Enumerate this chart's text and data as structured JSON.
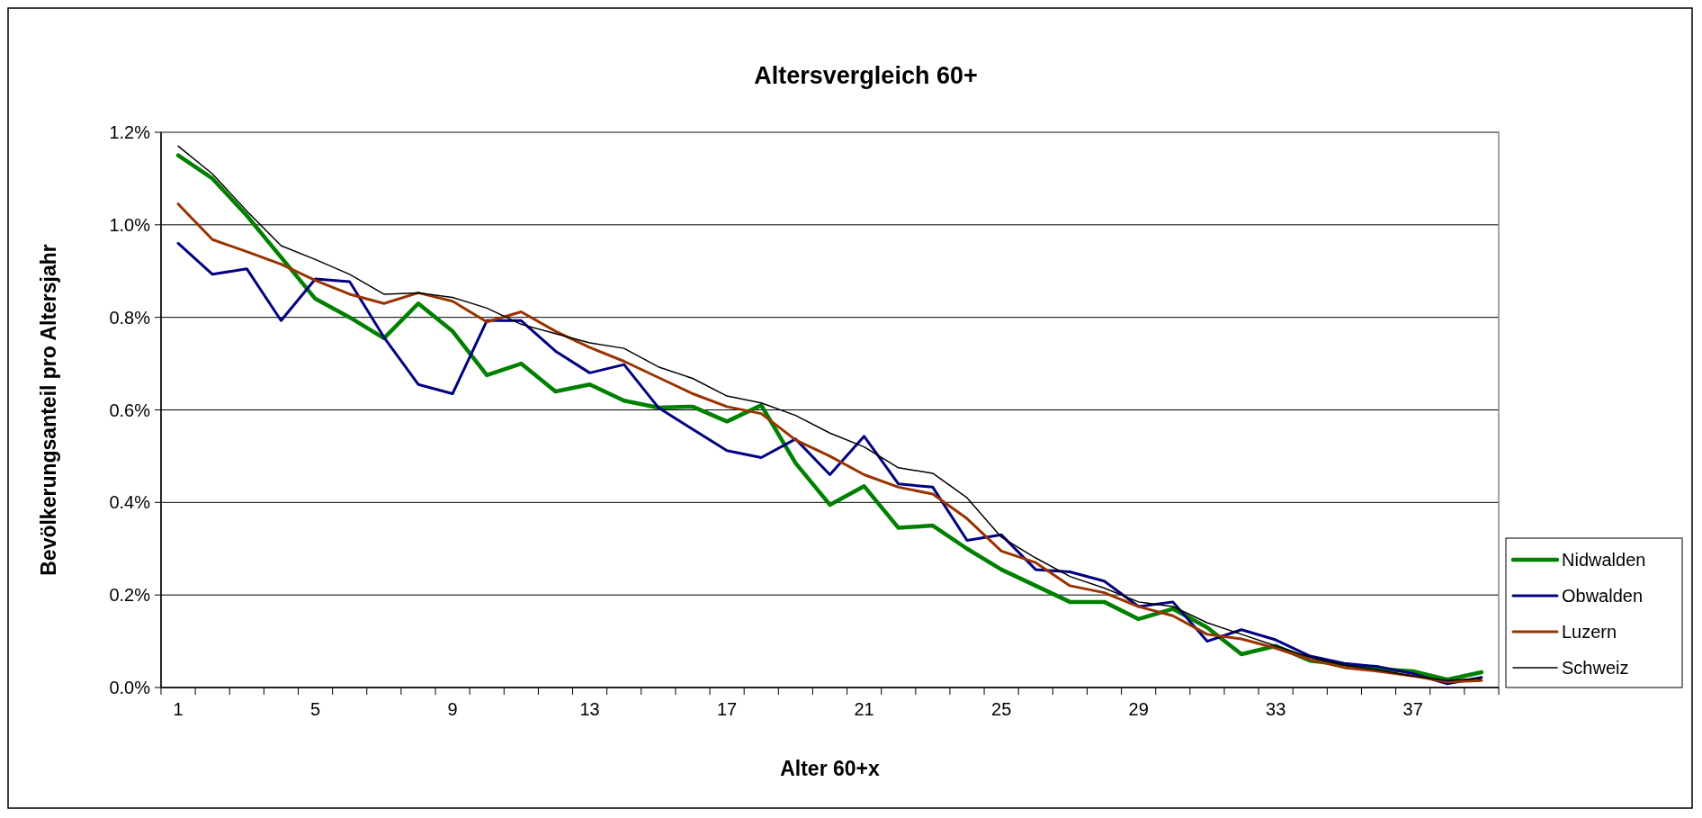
{
  "chart_data": {
    "type": "line",
    "title": "Altersvergleich 60+",
    "xlabel": "Alter 60+x",
    "ylabel": "Bevölkerungsanteil pro Altersjahr",
    "categories": [
      "1",
      null,
      null,
      null,
      "5",
      null,
      null,
      null,
      "9",
      null,
      null,
      null,
      "13",
      null,
      null,
      null,
      "17",
      null,
      null,
      null,
      "21",
      null,
      null,
      null,
      "25",
      null,
      null,
      null,
      "29",
      null,
      null,
      null,
      "33",
      null,
      null,
      null,
      "37",
      null,
      null
    ],
    "ylim": [
      0,
      1.2
    ],
    "yticks": [
      {
        "value": 0,
        "label": "0.0%"
      },
      {
        "value": 0.2,
        "label": "0.2%"
      },
      {
        "value": 0.4,
        "label": "0.4%"
      },
      {
        "value": 0.6,
        "label": "0.6%"
      },
      {
        "value": 0.8,
        "label": "0.8%"
      },
      {
        "value": 1.0,
        "label": "1.0%"
      },
      {
        "value": 1.2,
        "label": "1.2%"
      }
    ],
    "grid": "y",
    "legend": "bottom right",
    "line_style": "solid",
    "series": [
      {
        "name": "Nidwalden",
        "color": "#008000",
        "values": [
          1.15,
          1.1,
          1.02,
          0.93,
          0.84,
          0.8,
          0.755,
          0.83,
          0.77,
          0.675,
          0.7,
          0.64,
          0.655,
          0.62,
          0.605,
          0.607,
          0.575,
          0.61,
          0.485,
          0.395,
          0.435,
          0.345,
          0.35,
          0.3,
          0.255,
          0.22,
          0.185,
          0.185,
          0.148,
          0.17,
          0.13,
          0.072,
          0.09,
          0.058,
          0.05,
          0.04,
          0.035,
          0.017,
          0.033
        ]
      },
      {
        "name": "Obwalden",
        "color": "#000080",
        "values": [
          0.96,
          0.893,
          0.905,
          0.793,
          0.883,
          0.877,
          0.757,
          0.655,
          0.635,
          0.793,
          0.793,
          0.727,
          0.68,
          0.698,
          0.605,
          0.558,
          0.512,
          0.497,
          0.537,
          0.46,
          0.543,
          0.44,
          0.433,
          0.318,
          0.33,
          0.255,
          0.25,
          0.23,
          0.175,
          0.185,
          0.1,
          0.125,
          0.103,
          0.068,
          0.052,
          0.045,
          0.03,
          0.008,
          0.022
        ]
      },
      {
        "name": "Luzern",
        "color": "#993300",
        "values": [
          1.045,
          0.968,
          0.942,
          0.915,
          0.88,
          0.85,
          0.83,
          0.853,
          0.835,
          0.79,
          0.812,
          0.77,
          0.735,
          0.705,
          0.67,
          0.635,
          0.607,
          0.592,
          0.535,
          0.5,
          0.46,
          0.433,
          0.418,
          0.365,
          0.295,
          0.27,
          0.22,
          0.205,
          0.175,
          0.155,
          0.115,
          0.105,
          0.085,
          0.06,
          0.043,
          0.035,
          0.025,
          0.012,
          0.015
        ]
      },
      {
        "name": "Schweiz",
        "color": "#000000",
        "values": [
          1.17,
          1.11,
          1.03,
          0.955,
          0.925,
          0.893,
          0.85,
          0.853,
          0.843,
          0.82,
          0.785,
          0.765,
          0.745,
          0.733,
          0.693,
          0.668,
          0.63,
          0.615,
          0.588,
          0.55,
          0.52,
          0.475,
          0.463,
          0.41,
          0.325,
          0.28,
          0.24,
          0.215,
          0.185,
          0.175,
          0.14,
          0.115,
          0.09,
          0.065,
          0.048,
          0.038,
          0.025,
          0.015,
          0.02
        ]
      }
    ]
  }
}
